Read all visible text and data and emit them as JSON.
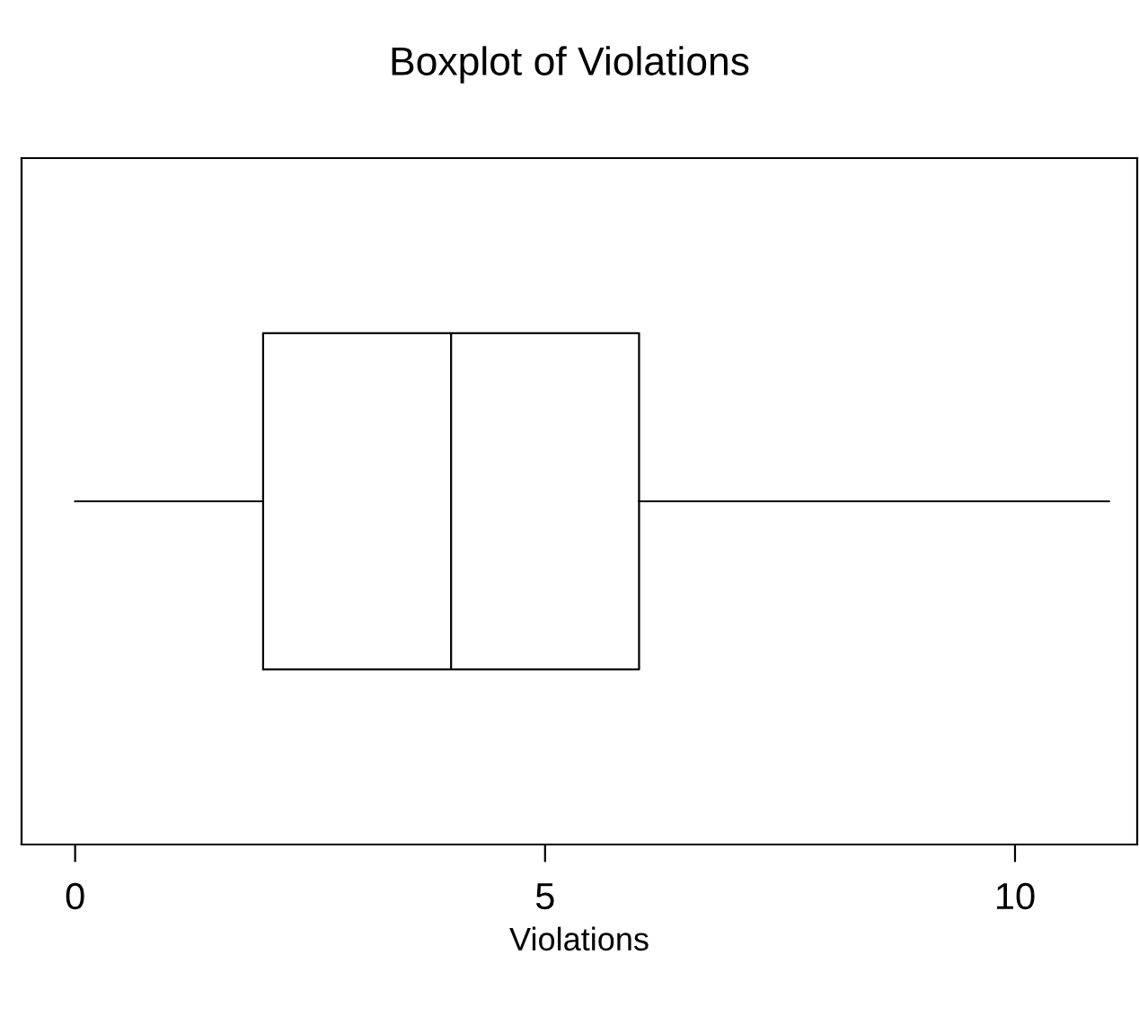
{
  "chart_data": {
    "type": "box",
    "title": "Boxplot of Violations",
    "xlabel": "Violations",
    "orientation": "horizontal",
    "categories": [
      null
    ],
    "boxes": [
      {
        "low": 0,
        "q1": 2,
        "median": 4,
        "q3": 6,
        "high": 11
      }
    ],
    "xlim": [
      -0.57,
      11.3
    ],
    "xticks": [
      0,
      5,
      10
    ],
    "tick_labels": "x",
    "grid": false,
    "legend": false
  }
}
